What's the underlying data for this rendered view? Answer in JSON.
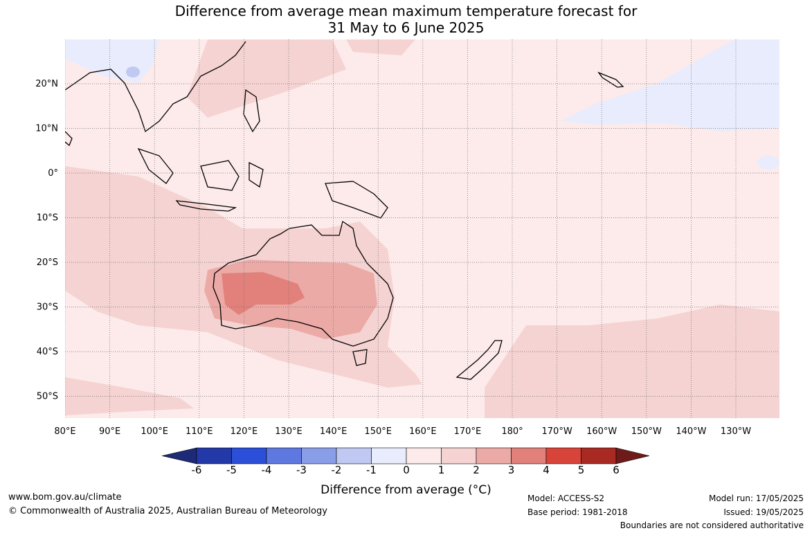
{
  "title": {
    "line1": "Difference from average mean maximum temperature forecast for",
    "line2": "31 May to 6 June 2025"
  },
  "axes": {
    "lon_labels": [
      "80°E",
      "90°E",
      "100°E",
      "110°E",
      "120°E",
      "130°E",
      "140°E",
      "150°E",
      "160°E",
      "170°E",
      "180°",
      "170°W",
      "160°W",
      "150°W",
      "140°W",
      "130°W"
    ],
    "lat_labels": [
      "20°N",
      "10°N",
      "0°",
      "10°S",
      "20°S",
      "30°S",
      "40°S",
      "50°S"
    ],
    "lon_range": [
      80,
      240
    ],
    "lat_range": [
      -55,
      30
    ],
    "grid": "dotted"
  },
  "colorbar": {
    "ticks": [
      "-6",
      "-5",
      "-4",
      "-3",
      "-2",
      "-1",
      "0",
      "1",
      "2",
      "3",
      "4",
      "5",
      "6"
    ],
    "colors": [
      "#1c2a78",
      "#2339a8",
      "#2b4fd8",
      "#5f78e0",
      "#8a9ee8",
      "#c0c9f2",
      "#e9ecfc",
      "#fcebea",
      "#f5d3d2",
      "#ecaaa6",
      "#e2817b",
      "#d9443a",
      "#a92a23",
      "#6e1a18"
    ],
    "label": "Difference from average (°C)"
  },
  "footer": {
    "website": "www.bom.gov.au/climate",
    "copyright": "© Commonwealth of Australia 2025, Australian Bureau of Meteorology",
    "model": "Model: ACCESS-S2",
    "base_period": "Base period: 1981-2018",
    "model_run": "Model run: 17/05/2025",
    "issued": "Issued: 19/05/2025",
    "disclaimer": "Boundaries are not considered authoritative"
  }
}
